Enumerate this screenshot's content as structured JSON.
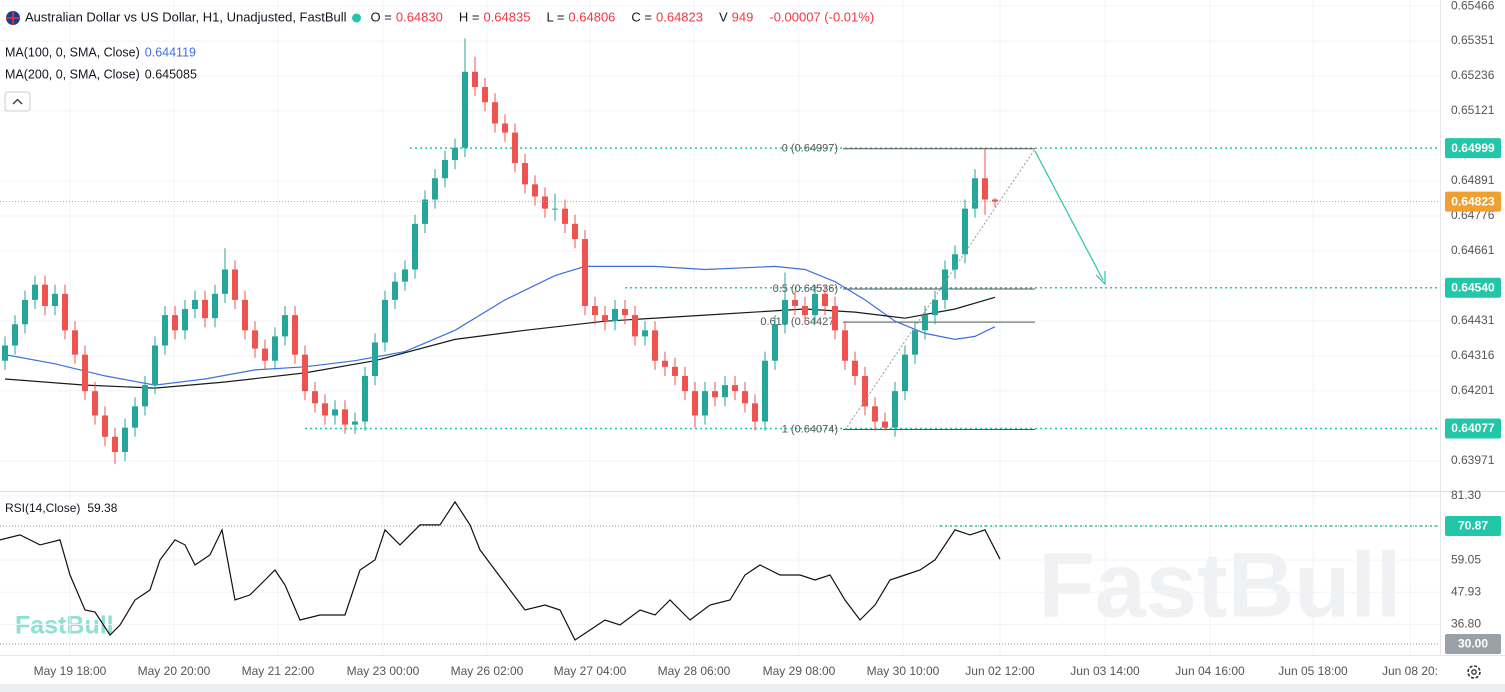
{
  "chart_data": [
    {
      "type": "candlestick",
      "title": "Australian Dollar vs US Dollar, H1, Unadjusted, FastBull",
      "quote": [
        {
          "name": "O =",
          "value": "0.64830"
        },
        {
          "name": "H =",
          "value": "0.64835"
        },
        {
          "name": "L =",
          "value": "0.64806"
        },
        {
          "name": "C =",
          "value": "0.64823"
        },
        {
          "name": "V",
          "value": "949"
        }
      ],
      "change": "-0.00007 (-0.01%)",
      "watermark": "FastBull",
      "up_color": "#26a69a",
      "down_color": "#ef5350",
      "level_color": "#22c7a9",
      "price_color": "#f0a030",
      "xlim": [
        -0.5,
        143.5
      ],
      "xticks": [
        {
          "value": 6.5,
          "label": "May 19 18:00"
        },
        {
          "value": 16.9,
          "label": "May 20 20:00"
        },
        {
          "value": 27.3,
          "label": "May 21 22:00"
        },
        {
          "value": 37.8,
          "label": "May 23 00:00"
        },
        {
          "value": 48.2,
          "label": "May 26 02:00"
        },
        {
          "value": 58.5,
          "label": "May 27 04:00"
        },
        {
          "value": 68.9,
          "label": "May 28 06:00"
        },
        {
          "value": 79.4,
          "label": "May 29 08:00"
        },
        {
          "value": 89.8,
          "label": "May 30 10:00"
        },
        {
          "value": 99.5,
          "label": "Jun 02 12:00"
        },
        {
          "value": 110,
          "label": "Jun 03 14:00"
        },
        {
          "value": 120.5,
          "label": "Jun 04 16:00"
        },
        {
          "value": 130.8,
          "label": "Jun 05 18:00"
        },
        {
          "value": 140.5,
          "label": "Jun 08 20:"
        }
      ],
      "ylim": [
        0.63875,
        0.65486
      ],
      "yticks": [
        0.65466,
        0.65351,
        0.65236,
        0.65121,
        0.64891,
        0.64776,
        0.64661,
        0.64431,
        0.64316,
        0.64201,
        0.63971
      ],
      "grid": true,
      "candles": [
        [
          0.643,
          0.6438,
          0.6427,
          0.6435
        ],
        [
          0.6435,
          0.6445,
          0.6432,
          0.6442
        ],
        [
          0.6442,
          0.6453,
          0.6439,
          0.645
        ],
        [
          0.645,
          0.6458,
          0.6447,
          0.6455
        ],
        [
          0.6455,
          0.6458,
          0.6445,
          0.6448
        ],
        [
          0.6448,
          0.6455,
          0.6445,
          0.6452
        ],
        [
          0.6452,
          0.6455,
          0.6437,
          0.644
        ],
        [
          0.644,
          0.6443,
          0.6429,
          0.6432
        ],
        [
          0.6432,
          0.6435,
          0.6417,
          0.642
        ],
        [
          0.642,
          0.6423,
          0.6409,
          0.6412
        ],
        [
          0.6412,
          0.6415,
          0.6402,
          0.6405
        ],
        [
          0.6405,
          0.6408,
          0.6396,
          0.64
        ],
        [
          0.64,
          0.6411,
          0.6397,
          0.6408
        ],
        [
          0.6408,
          0.6418,
          0.6405,
          0.6415
        ],
        [
          0.6415,
          0.6425,
          0.6412,
          0.6422
        ],
        [
          0.6422,
          0.6438,
          0.6419,
          0.6435
        ],
        [
          0.6435,
          0.6448,
          0.6432,
          0.6445
        ],
        [
          0.6445,
          0.6448,
          0.6437,
          0.644
        ],
        [
          0.644,
          0.645,
          0.6437,
          0.6447
        ],
        [
          0.6447,
          0.6453,
          0.6444,
          0.645
        ],
        [
          0.645,
          0.6453,
          0.6441,
          0.6444
        ],
        [
          0.6444,
          0.6455,
          0.6441,
          0.6452
        ],
        [
          0.6452,
          0.6467,
          0.6449,
          0.646
        ],
        [
          0.646,
          0.6463,
          0.6447,
          0.645
        ],
        [
          0.645,
          0.6453,
          0.6437,
          0.644
        ],
        [
          0.644,
          0.6443,
          0.6431,
          0.6434
        ],
        [
          0.6434,
          0.6437,
          0.6427,
          0.643
        ],
        [
          0.643,
          0.6441,
          0.6427,
          0.6438
        ],
        [
          0.6438,
          0.6448,
          0.6435,
          0.6445
        ],
        [
          0.6445,
          0.6448,
          0.6429,
          0.6432
        ],
        [
          0.6432,
          0.6435,
          0.6417,
          0.642
        ],
        [
          0.642,
          0.6423,
          0.6413,
          0.6416
        ],
        [
          0.6416,
          0.6419,
          0.6409,
          0.6412
        ],
        [
          0.6412,
          0.6417,
          0.6409,
          0.6414
        ],
        [
          0.6414,
          0.6417,
          0.6406,
          0.6409
        ],
        [
          0.6409,
          0.6413,
          0.6406,
          0.641
        ],
        [
          0.641,
          0.6428,
          0.6407,
          0.6425
        ],
        [
          0.6425,
          0.6439,
          0.6422,
          0.6436
        ],
        [
          0.6436,
          0.6453,
          0.6433,
          0.645
        ],
        [
          0.645,
          0.6459,
          0.6447,
          0.6456
        ],
        [
          0.6456,
          0.6463,
          0.6453,
          0.646
        ],
        [
          0.646,
          0.6478,
          0.6457,
          0.6475
        ],
        [
          0.6475,
          0.6486,
          0.6472,
          0.6483
        ],
        [
          0.6483,
          0.6493,
          0.648,
          0.649
        ],
        [
          0.649,
          0.6499,
          0.6487,
          0.6496
        ],
        [
          0.6496,
          0.6503,
          0.6493,
          0.65
        ],
        [
          0.65,
          0.6536,
          0.6497,
          0.6525
        ],
        [
          0.6525,
          0.653,
          0.6517,
          0.652
        ],
        [
          0.652,
          0.6523,
          0.6512,
          0.6515
        ],
        [
          0.6515,
          0.6518,
          0.6505,
          0.6508
        ],
        [
          0.6508,
          0.6511,
          0.6502,
          0.6505
        ],
        [
          0.6505,
          0.6508,
          0.6492,
          0.6495
        ],
        [
          0.6495,
          0.6498,
          0.6485,
          0.6488
        ],
        [
          0.6488,
          0.6491,
          0.6481,
          0.6484
        ],
        [
          0.6484,
          0.6487,
          0.6477,
          0.648
        ],
        [
          0.648,
          0.6485,
          0.6476,
          0.648
        ],
        [
          0.648,
          0.6483,
          0.6472,
          0.6475
        ],
        [
          0.6475,
          0.6478,
          0.6467,
          0.647
        ],
        [
          0.647,
          0.6473,
          0.6445,
          0.6448
        ],
        [
          0.6448,
          0.6451,
          0.6442,
          0.6445
        ],
        [
          0.6445,
          0.6448,
          0.644,
          0.6443
        ],
        [
          0.6443,
          0.645,
          0.644,
          0.6447
        ],
        [
          0.6447,
          0.645,
          0.6442,
          0.6445
        ],
        [
          0.6445,
          0.6448,
          0.6435,
          0.6438
        ],
        [
          0.6438,
          0.6443,
          0.6435,
          0.644
        ],
        [
          0.644,
          0.6443,
          0.6427,
          0.643
        ],
        [
          0.643,
          0.6433,
          0.6425,
          0.6428
        ],
        [
          0.6428,
          0.6431,
          0.6422,
          0.6425
        ],
        [
          0.6425,
          0.6428,
          0.6417,
          0.642
        ],
        [
          0.642,
          0.6423,
          0.6408,
          0.6412
        ],
        [
          0.6412,
          0.6423,
          0.6409,
          0.642
        ],
        [
          0.642,
          0.6423,
          0.6415,
          0.6418
        ],
        [
          0.6418,
          0.6425,
          0.6415,
          0.6422
        ],
        [
          0.6422,
          0.6425,
          0.6417,
          0.642
        ],
        [
          0.642,
          0.6423,
          0.6413,
          0.6416
        ],
        [
          0.6416,
          0.6419,
          0.6407,
          0.641
        ],
        [
          0.641,
          0.6433,
          0.6407,
          0.643
        ],
        [
          0.643,
          0.6445,
          0.6427,
          0.6442
        ],
        [
          0.6442,
          0.6459,
          0.6439,
          0.645
        ],
        [
          0.645,
          0.6453,
          0.6445,
          0.6448
        ],
        [
          0.6448,
          0.6451,
          0.6442,
          0.6445
        ],
        [
          0.6445,
          0.6455,
          0.6442,
          0.6452
        ],
        [
          0.6452,
          0.6455,
          0.6445,
          0.6448
        ],
        [
          0.6448,
          0.6451,
          0.6437,
          0.644
        ],
        [
          0.644,
          0.6443,
          0.6427,
          0.643
        ],
        [
          0.643,
          0.6433,
          0.6422,
          0.6425
        ],
        [
          0.6425,
          0.6428,
          0.6412,
          0.6415
        ],
        [
          0.6415,
          0.6418,
          0.6407,
          0.641
        ],
        [
          0.641,
          0.6413,
          0.6407,
          0.6408
        ],
        [
          0.6408,
          0.6423,
          0.6405,
          0.642
        ],
        [
          0.642,
          0.6435,
          0.6417,
          0.6432
        ],
        [
          0.6432,
          0.6443,
          0.6429,
          0.644
        ],
        [
          0.644,
          0.6448,
          0.6437,
          0.6445
        ],
        [
          0.6445,
          0.6453,
          0.6442,
          0.645
        ],
        [
          0.645,
          0.6463,
          0.6447,
          0.646
        ],
        [
          0.646,
          0.6468,
          0.6457,
          0.6465
        ],
        [
          0.6465,
          0.6483,
          0.6462,
          0.648
        ],
        [
          0.648,
          0.6493,
          0.6477,
          0.649
        ],
        [
          0.649,
          0.64997,
          0.6478,
          0.6483
        ],
        [
          0.6483,
          0.64835,
          0.64806,
          0.64823
        ]
      ],
      "series": [
        {
          "name": "MA(100, 0, SMA, Close)",
          "color": "#3d6fe0",
          "x": [
            0,
            5,
            10,
            15,
            20,
            25,
            30,
            35,
            40,
            45,
            50,
            55,
            58,
            65,
            70,
            77,
            80,
            83,
            86,
            89,
            92,
            95,
            97,
            99
          ],
          "values": [
            0.6432,
            0.6429,
            0.6425,
            0.6422,
            0.6424,
            0.6427,
            0.6428,
            0.643,
            0.6433,
            0.644,
            0.645,
            0.6458,
            0.6461,
            0.6461,
            0.646,
            0.6461,
            0.646,
            0.6456,
            0.645,
            0.6443,
            0.6439,
            0.6437,
            0.6438,
            0.644119
          ]
        },
        {
          "name": "MA(200, 0, SMA, Close)",
          "color": "#1a1a1a",
          "x": [
            0,
            8,
            15,
            22,
            30,
            37,
            45,
            52,
            60,
            70,
            80,
            85,
            90,
            95,
            99
          ],
          "values": [
            0.6424,
            0.6422,
            0.6421,
            0.6423,
            0.6426,
            0.643,
            0.6437,
            0.644,
            0.6443,
            0.6445,
            0.6447,
            0.6446,
            0.6444,
            0.6447,
            0.645085
          ]
        }
      ],
      "levels": [
        0.64999,
        {
          "value": 0.6454,
          "label": "0.64540"
        },
        0.64077
      ],
      "fib": [
        {
          "label": "0 (0.64997)",
          "value": 0.64997
        },
        {
          "label": "0.5 (0.64536)",
          "value": 0.64536
        },
        {
          "label": "0.618 (0.64427)",
          "value": 0.64427
        },
        {
          "label": "1 (0.64074)",
          "value": 0.64074
        }
      ]
    },
    {
      "type": "line",
      "name": "RSI(14,Close)",
      "color": "#111111",
      "level_color": "#22c7a9",
      "ylim": [
        26.2,
        82.3
      ],
      "yticks": [
        {
          "value": 81.3,
          "label": "81.30"
        },
        59.05,
        47.93,
        {
          "value": 36.8,
          "label": "36.80"
        }
      ],
      "levels": [
        70.87,
        {
          "value": 30,
          "label": "30.00"
        }
      ],
      "x": [
        -0.5,
        1.5,
        3.5,
        5.5,
        6.5,
        8,
        9,
        10.5,
        11.5,
        13,
        14.5,
        15.5,
        17,
        18,
        19,
        20.5,
        21.7,
        23,
        24.5,
        26,
        27,
        28,
        29.5,
        31.5,
        34,
        35.5,
        37,
        38,
        39.5,
        41.5,
        43.5,
        45,
        46.5,
        47.5,
        49,
        50.5,
        52,
        54,
        55.5,
        57,
        58.5,
        60,
        61.5,
        63.5,
        65,
        66.5,
        68.5,
        70.5,
        72.5,
        74,
        75.5,
        77.5,
        79.5,
        81,
        82.5,
        84,
        85.5,
        87,
        88.5,
        90,
        91.5,
        93,
        95,
        96.5,
        98,
        99.5
      ],
      "values": [
        66.05,
        67.78,
        64.32,
        66.05,
        53.92,
        41.79,
        41.09,
        33.12,
        36.59,
        45.25,
        48.72,
        59.12,
        66.05,
        64.32,
        57.38,
        60.85,
        69.51,
        45.25,
        47.0,
        52.18,
        55.65,
        50.45,
        38.32,
        40.05,
        40.05,
        55.65,
        59.12,
        69.51,
        64.32,
        71.25,
        71.25,
        79.22,
        71.25,
        62.58,
        55.65,
        48.72,
        41.79,
        43.52,
        41.79,
        31.39,
        34.85,
        38.32,
        36.59,
        41.79,
        40.05,
        45.25,
        38.32,
        43.52,
        45.25,
        53.92,
        57.38,
        53.92,
        53.92,
        52.18,
        53.92,
        45.25,
        38.32,
        43.52,
        52.18,
        53.92,
        55.65,
        59.12,
        69.51,
        67.78,
        69.51,
        59.38
      ]
    }
  ]
}
